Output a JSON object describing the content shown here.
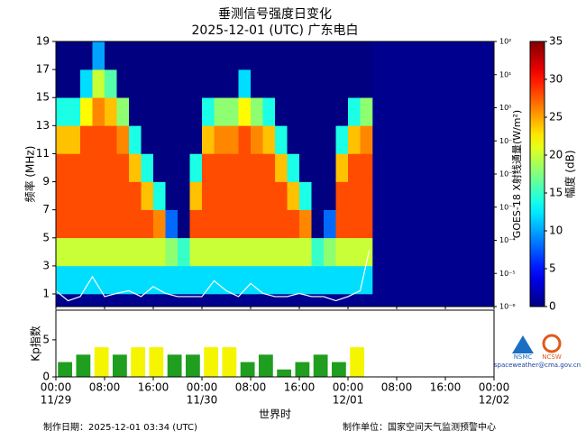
{
  "chart_data": [
    {
      "type": "heatmap",
      "title": "垂测信号强度日变化",
      "subtitle": "2025-12-01 (UTC)  广东电白",
      "ylabel": "频率 (MHz)",
      "y2label": "GOES-18 X射线通量(W/m²)",
      "zlabel": "幅度 (dB)",
      "colormap": "jet",
      "background": "#00008f",
      "xlim": [
        0,
        72
      ],
      "xticks": [
        {
          "value": 0,
          "label": "00:00"
        },
        {
          "value": 8,
          "label": "08:00"
        },
        {
          "value": 16,
          "label": "16:00"
        },
        {
          "value": 24,
          "label": "00:00"
        },
        {
          "value": 32,
          "label": "08:00"
        },
        {
          "value": 40,
          "label": "16:00"
        },
        {
          "value": 48,
          "label": "00:00"
        },
        {
          "value": 56,
          "label": "08:00"
        },
        {
          "value": 64,
          "label": "16:00"
        },
        {
          "value": 72,
          "label": "00:00"
        }
      ],
      "xtick_dates": [
        {
          "value": 0,
          "label": "11/29"
        },
        {
          "value": 24,
          "label": "11/30"
        },
        {
          "value": 48,
          "label": "12/01"
        },
        {
          "value": 72,
          "label": "12/02"
        }
      ],
      "ylim": [
        0.1,
        19
      ],
      "yticks": [
        1,
        3,
        5,
        7,
        9,
        11,
        13,
        15,
        17,
        19
      ],
      "y2lim": [
        1e-06,
        100
      ],
      "y2log": true,
      "y2ticks": [
        {
          "value": 100,
          "label": "10²"
        },
        {
          "value": 10,
          "label": "10¹"
        },
        {
          "value": 1,
          "label": "10⁰"
        },
        {
          "value": 0.1,
          "label": "10⁻¹"
        },
        {
          "value": 0.01,
          "label": "10⁻²"
        },
        {
          "value": 0.001,
          "label": "10⁻³"
        },
        {
          "value": 0.0001,
          "label": "10⁻⁴"
        },
        {
          "value": 1e-05,
          "label": "10⁻⁵"
        },
        {
          "value": 1e-06,
          "label": "10⁻⁶"
        }
      ],
      "zlim": [
        0,
        35
      ],
      "zticks": [
        0,
        5,
        10,
        15,
        20,
        25,
        30,
        35
      ],
      "x_bins": [
        0,
        2,
        4,
        6,
        8,
        10,
        12,
        14,
        16,
        18,
        20,
        22,
        24,
        26,
        28,
        30,
        32,
        34,
        36,
        38,
        40,
        42,
        44,
        46,
        48,
        50,
        52
      ],
      "y_bins": [
        1,
        3,
        5,
        7,
        9,
        11,
        13,
        15,
        17,
        19
      ],
      "z": [
        [
          12,
          20,
          28,
          28,
          28,
          24,
          14,
          0,
          0
        ],
        [
          12,
          20,
          28,
          28,
          28,
          24,
          14,
          0,
          0
        ],
        [
          12,
          20,
          28,
          28,
          28,
          28,
          22,
          12,
          0
        ],
        [
          12,
          20,
          28,
          28,
          28,
          28,
          26,
          20,
          10
        ],
        [
          12,
          20,
          28,
          28,
          28,
          28,
          24,
          16,
          0
        ],
        [
          12,
          20,
          28,
          28,
          28,
          26,
          18,
          0,
          0
        ],
        [
          12,
          20,
          28,
          28,
          24,
          14,
          0,
          0,
          0
        ],
        [
          12,
          20,
          28,
          24,
          14,
          0,
          0,
          0,
          0
        ],
        [
          12,
          20,
          26,
          14,
          0,
          0,
          0,
          0,
          0
        ],
        [
          12,
          18,
          8,
          0,
          0,
          0,
          0,
          0,
          0
        ],
        [
          12,
          15,
          0,
          0,
          0,
          0,
          0,
          0,
          0
        ],
        [
          12,
          20,
          28,
          24,
          14,
          0,
          0,
          0,
          0
        ],
        [
          12,
          20,
          28,
          28,
          28,
          24,
          14,
          0,
          0
        ],
        [
          12,
          20,
          28,
          28,
          28,
          26,
          18,
          0,
          0
        ],
        [
          12,
          20,
          28,
          28,
          28,
          26,
          18,
          0,
          0
        ],
        [
          12,
          20,
          28,
          28,
          28,
          28,
          22,
          12,
          0
        ],
        [
          12,
          20,
          28,
          28,
          28,
          26,
          18,
          0,
          0
        ],
        [
          12,
          20,
          28,
          28,
          28,
          24,
          14,
          0,
          0
        ],
        [
          12,
          20,
          28,
          28,
          24,
          14,
          0,
          0,
          0
        ],
        [
          12,
          20,
          28,
          24,
          14,
          0,
          0,
          0,
          0
        ],
        [
          12,
          20,
          26,
          14,
          0,
          0,
          0,
          0,
          0
        ],
        [
          12,
          15,
          0,
          0,
          0,
          0,
          0,
          0,
          0
        ],
        [
          12,
          18,
          8,
          0,
          0,
          0,
          0,
          0,
          0
        ],
        [
          12,
          20,
          28,
          28,
          24,
          14,
          0,
          0,
          0
        ],
        [
          12,
          20,
          28,
          28,
          28,
          24,
          14,
          0,
          0
        ],
        [
          12,
          20,
          28,
          28,
          28,
          26,
          18,
          0,
          0
        ]
      ],
      "xray": {
        "axis": "y2",
        "color": "#ffffff",
        "x": [
          0,
          2,
          4,
          6,
          8,
          10,
          12,
          14,
          16,
          18,
          20,
          22,
          24,
          26,
          28,
          30,
          32,
          34,
          36,
          38,
          40,
          42,
          44,
          46,
          48,
          50,
          51.5
        ],
        "values": [
          3e-06,
          1.5e-06,
          2e-06,
          8e-06,
          2e-06,
          2.5e-06,
          3e-06,
          2e-06,
          4e-06,
          2.5e-06,
          2e-06,
          2e-06,
          2e-06,
          6e-06,
          3e-06,
          2e-06,
          5e-06,
          2.5e-06,
          2e-06,
          2e-06,
          2.5e-06,
          2e-06,
          2e-06,
          1.5e-06,
          2e-06,
          3e-06,
          5e-05
        ]
      }
    },
    {
      "type": "bar",
      "ylabel": "Kp指数",
      "xlabel": "世界时",
      "xlim": [
        0,
        72
      ],
      "ylim": [
        0,
        9
      ],
      "yticks": [
        0,
        5
      ],
      "color": "#1f9e1f",
      "active_color": "#f5f500",
      "active_threshold": 4,
      "x": [
        0,
        3,
        6,
        9,
        12,
        15,
        18,
        21,
        24,
        27,
        30,
        33,
        36,
        39,
        42,
        45,
        48
      ],
      "values": [
        2,
        3,
        4,
        3,
        4,
        4,
        3,
        3,
        4,
        4,
        2,
        3,
        1,
        2,
        3,
        2,
        4
      ]
    }
  ],
  "logos": [
    "NSMC",
    "NCSW"
  ],
  "contact": "spaceweather@cma.gov.cn",
  "footer": {
    "date": "制作日期：2025-12-01 03:34 (UTC)",
    "org": "制作单位：国家空间天气监测预警中心"
  }
}
